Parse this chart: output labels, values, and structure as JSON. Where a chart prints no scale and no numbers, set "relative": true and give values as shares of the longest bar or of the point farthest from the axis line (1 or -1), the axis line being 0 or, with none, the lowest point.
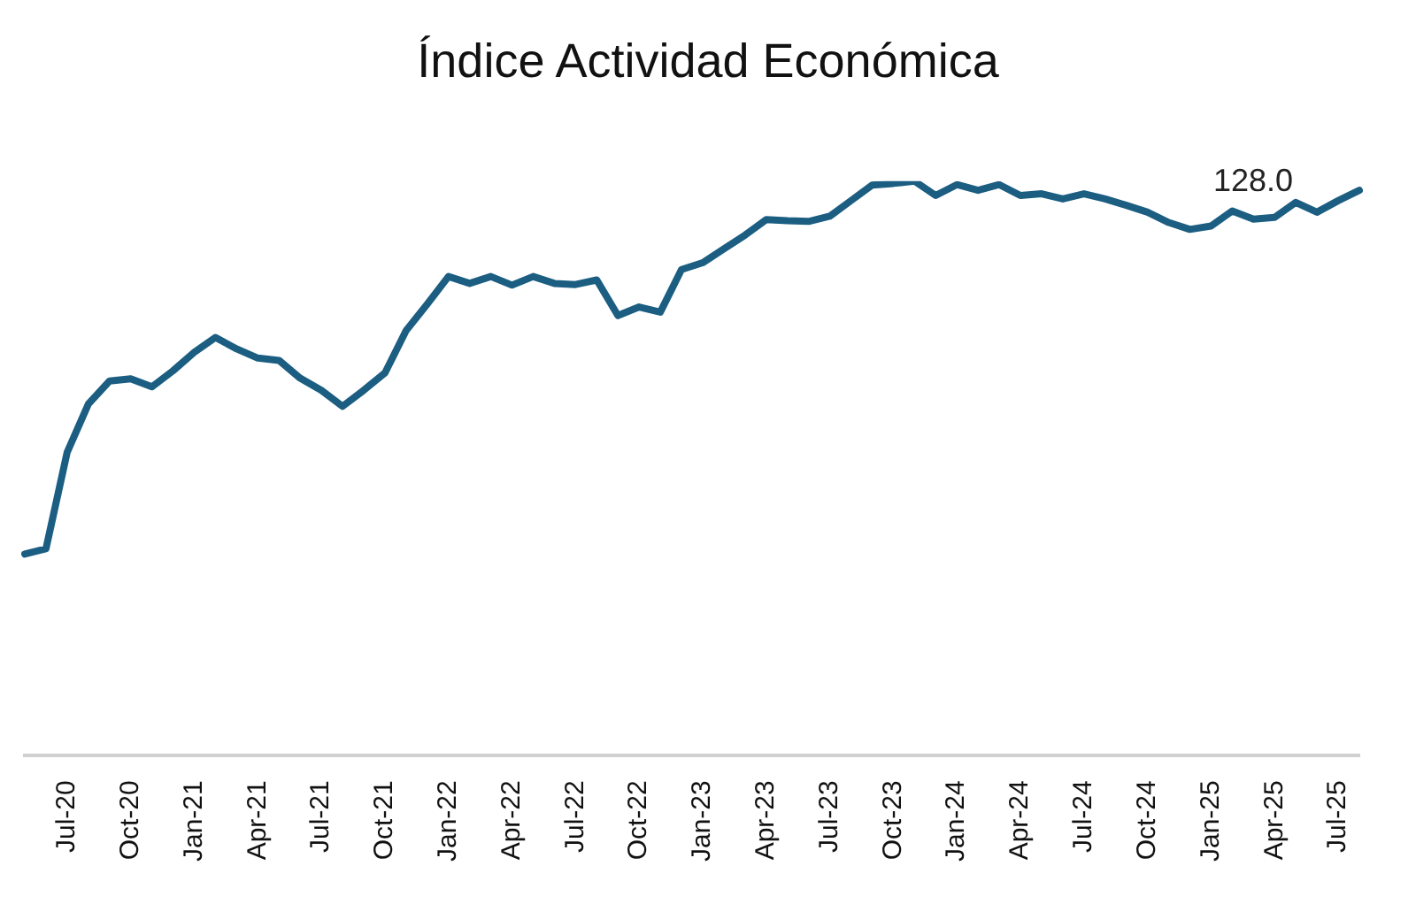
{
  "chart_data": {
    "type": "line",
    "title": "Índice Actividad Económica",
    "relative": true,
    "grid": false,
    "legend": false,
    "marker": "none",
    "line_style": "solid",
    "categories": [
      null,
      null,
      "Jul-20",
      null,
      null,
      "Oct-20",
      null,
      null,
      "Jan-21",
      null,
      null,
      "Apr-21",
      null,
      null,
      "Jul-21",
      null,
      null,
      "Oct-21",
      null,
      null,
      "Jan-22",
      null,
      null,
      "Apr-22",
      null,
      null,
      "Jul-22",
      null,
      null,
      "Oct-22",
      null,
      null,
      "Jan-23",
      null,
      null,
      "Apr-23",
      null,
      null,
      "Jul-23",
      null,
      null,
      "Oct-23",
      null,
      null,
      "Jan-24",
      null,
      null,
      "Apr-24",
      null,
      null,
      "Jul-24",
      null,
      null,
      "Oct-24",
      null,
      null,
      "Jan-25",
      null,
      null,
      "Apr-25",
      null,
      null,
      "Jul-25",
      null
    ],
    "series": [
      {
        "color": "#1b5e82",
        "values": [
          0.351,
          0.36,
          0.528,
          0.612,
          0.652,
          0.656,
          0.642,
          0.67,
          0.702,
          0.728,
          0.708,
          0.692,
          0.688,
          0.657,
          0.636,
          0.608,
          0.636,
          0.666,
          0.74,
          0.786,
          0.834,
          0.822,
          0.834,
          0.819,
          0.834,
          0.822,
          0.82,
          0.828,
          0.766,
          0.781,
          0.772,
          0.846,
          0.858,
          0.882,
          0.906,
          0.933,
          0.931,
          0.93,
          0.939,
          0.966,
          0.993,
          0.996,
          1,
          0.975,
          0.994,
          0.984,
          0.994,
          0.975,
          0.978,
          0.969,
          0.978,
          0.969,
          0.958,
          0.946,
          0.928,
          0.916,
          0.922,
          0.948,
          0.934,
          0.937,
          0.963,
          0.946,
          0.966,
          0.984
        ]
      }
    ],
    "annotations": [
      "128.0"
    ]
  }
}
